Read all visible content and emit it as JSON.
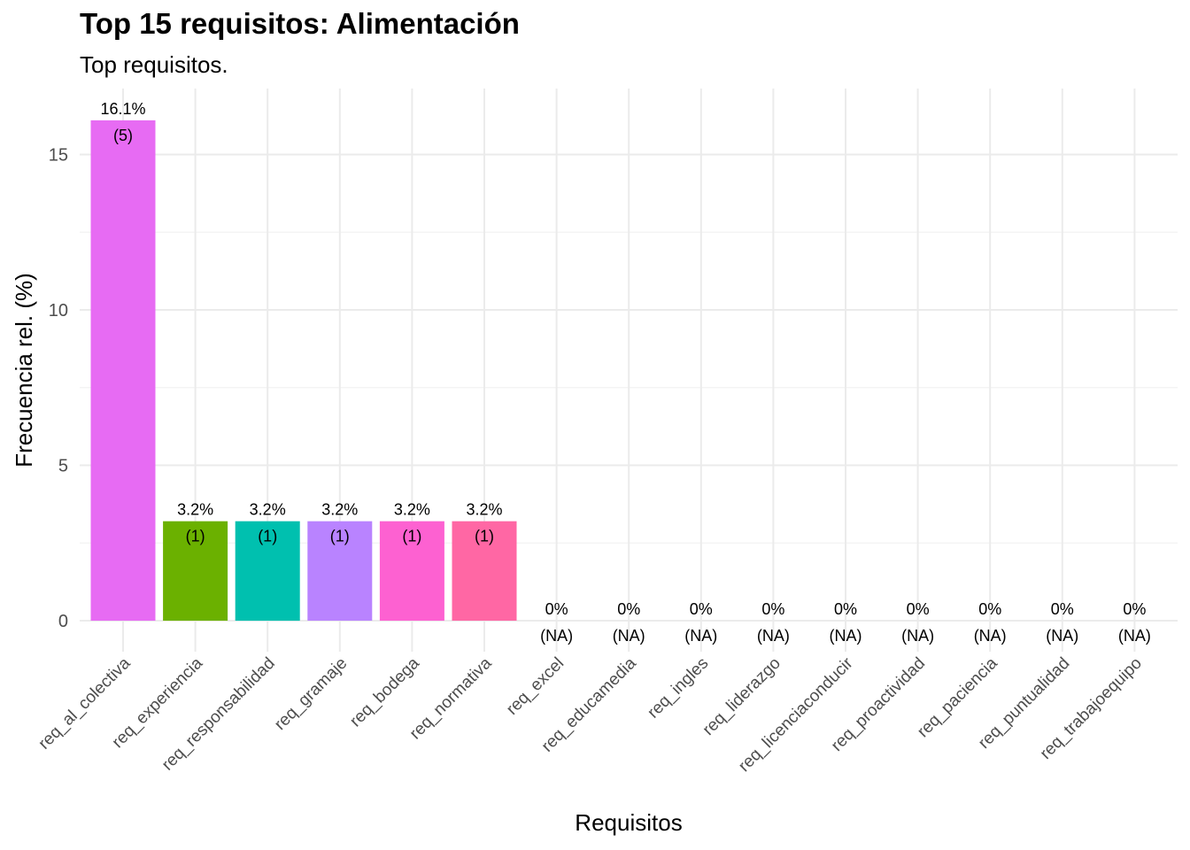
{
  "chart_data": {
    "type": "bar",
    "title": "Top 15 requisitos: Alimentación",
    "subtitle": "Top requisitos.",
    "xlabel": "Requisitos",
    "ylabel": "Frecuencia rel. (%)",
    "ylim": [
      0,
      16.1
    ],
    "yticks": [
      "0",
      "5",
      "10",
      "15"
    ],
    "grid": true,
    "categories": [
      "req_al_colectiva",
      "req_experiencia",
      "req_responsabilidad",
      "req_gramaje",
      "req_bodega",
      "req_normativa",
      "req_excel",
      "req_educamedia",
      "req_ingles",
      "req_liderazgo",
      "req_licenciaconducir",
      "req_proactividad",
      "req_paciencia",
      "req_puntualidad",
      "req_trabajoequipo"
    ],
    "values": [
      16.1,
      3.2,
      3.2,
      3.2,
      3.2,
      3.2,
      0,
      0,
      0,
      0,
      0,
      0,
      0,
      0,
      0
    ],
    "value_labels": [
      "16.1%",
      "3.2%",
      "3.2%",
      "3.2%",
      "3.2%",
      "3.2%",
      "0%",
      "0%",
      "0%",
      "0%",
      "0%",
      "0%",
      "0%",
      "0%",
      "0%"
    ],
    "count_labels": [
      "(5)",
      "(1)",
      "(1)",
      "(1)",
      "(1)",
      "(1)",
      "(NA)",
      "(NA)",
      "(NA)",
      "(NA)",
      "(NA)",
      "(NA)",
      "(NA)",
      "(NA)",
      "(NA)"
    ],
    "colors": [
      "#E76BF3",
      "#6BB100",
      "#00C0AF",
      "#B983FF",
      "#FD61D1",
      "#FF67A4",
      "#F8766D",
      "#F8766D",
      "#F8766D",
      "#F8766D",
      "#F8766D",
      "#F8766D",
      "#F8766D",
      "#F8766D",
      "#F8766D"
    ]
  }
}
